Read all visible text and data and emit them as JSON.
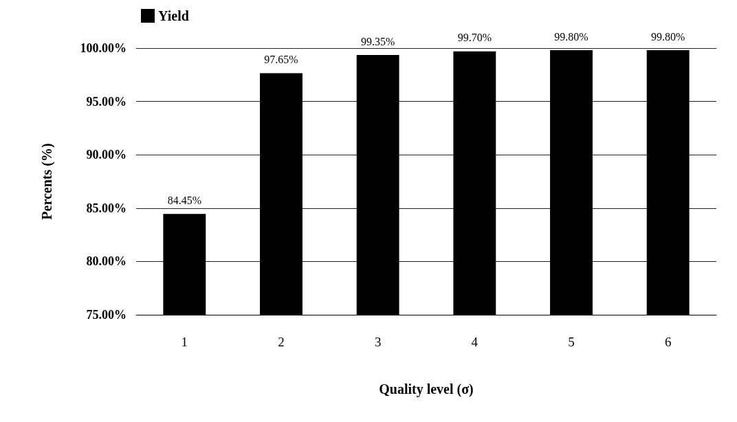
{
  "chart_data": {
    "type": "bar",
    "xlabel": "Quality level (σ)",
    "ylabel": "Percents (%)",
    "categories": [
      "1",
      "2",
      "3",
      "4",
      "5",
      "6"
    ],
    "series": [
      {
        "name": "Yield",
        "color": "#000000",
        "values": [
          84.45,
          97.65,
          99.35,
          99.7,
          99.8,
          99.8
        ],
        "value_labels": [
          "84.45%",
          "97.65%",
          "99.35%",
          "99.70%",
          "99.80%",
          "99.80%"
        ]
      }
    ],
    "ylim": [
      75,
      100
    ],
    "yticks": [
      {
        "value": 75,
        "label": "75.00%"
      },
      {
        "value": 80,
        "label": "80.00%"
      },
      {
        "value": 85,
        "label": "85.00%"
      },
      {
        "value": 90,
        "label": "90.00%"
      },
      {
        "value": 95,
        "label": "95.00%"
      },
      {
        "value": 100,
        "label": "100.00%"
      }
    ],
    "grid": "y",
    "legend": "top left"
  }
}
